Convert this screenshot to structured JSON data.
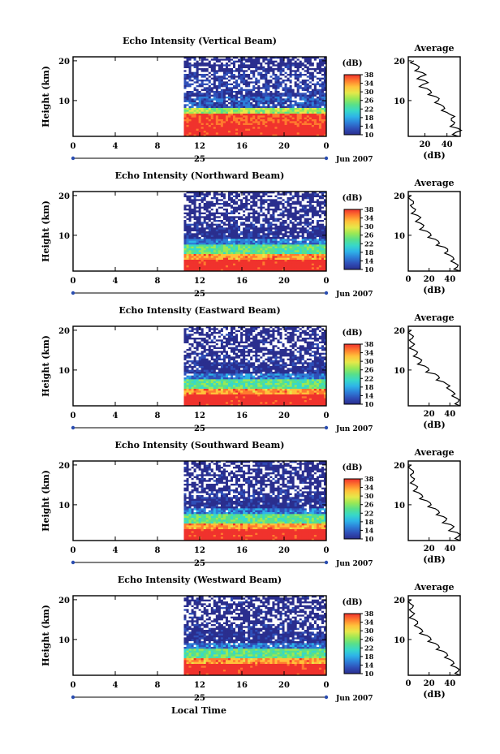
{
  "figure": {
    "footer_xlabel": "Local Time",
    "colorbar": {
      "unit": "(dB)",
      "ticks": [
        "10",
        "14",
        "18",
        "22",
        "26",
        "30",
        "34",
        "38"
      ],
      "range": [
        10,
        38
      ]
    },
    "colormap": [
      "#2a2e8e",
      "#2f4fb8",
      "#2d7fd8",
      "#2eb4e8",
      "#38d8c8",
      "#59e08a",
      "#9be855",
      "#e6e84a",
      "#ffc13a",
      "#ff7a2e",
      "#f0322d"
    ],
    "date_label": "Jun 2007",
    "day_label": "25",
    "profile_title": "Average",
    "profile_xlabel": "(dB)"
  },
  "chart_data": [
    {
      "type": "heatmap",
      "title": "Echo Intensity (Vertical Beam)",
      "ylabel": "Height (km)",
      "x_ticks": [
        "0",
        "4",
        "8",
        "12",
        "16",
        "20",
        "0"
      ],
      "y_ticks": [
        "10",
        "20"
      ],
      "xlim": [
        0,
        24
      ],
      "ylim": [
        1,
        21
      ],
      "data_start_hour": 10.5,
      "layers": [
        {
          "from_km": 1,
          "to_km": 4,
          "db": 38
        },
        {
          "from_km": 4,
          "to_km": 6.5,
          "db": 36
        },
        {
          "from_km": 6.5,
          "to_km": 8,
          "db": 27
        },
        {
          "from_km": 8,
          "to_km": 11,
          "db": 14
        },
        {
          "from_km": 11,
          "to_km": 17,
          "db": 12
        },
        {
          "from_km": 17,
          "to_km": 21,
          "db": 10
        }
      ],
      "profile": {
        "xlabel": "(dB)",
        "x_ticks": [
          "20",
          "40"
        ],
        "xlim": [
          5,
          52
        ],
        "ylim": [
          1,
          21
        ],
        "y_ticks": [
          "10",
          "20"
        ],
        "points": [
          [
            50,
            1
          ],
          [
            48,
            2
          ],
          [
            50,
            3
          ],
          [
            46,
            4
          ],
          [
            44,
            5
          ],
          [
            47,
            6
          ],
          [
            40,
            7
          ],
          [
            38,
            8
          ],
          [
            34,
            9
          ],
          [
            32,
            10
          ],
          [
            30,
            11
          ],
          [
            26,
            12
          ],
          [
            22,
            13
          ],
          [
            18,
            14
          ],
          [
            20,
            15
          ],
          [
            16,
            16
          ],
          [
            18,
            17
          ],
          [
            14,
            18
          ],
          [
            12,
            19
          ],
          [
            10,
            20
          ]
        ]
      }
    },
    {
      "type": "heatmap",
      "title": "Echo Intensity (Northward Beam)",
      "ylabel": "Height (km)",
      "x_ticks": [
        "0",
        "4",
        "8",
        "12",
        "16",
        "20",
        "0"
      ],
      "y_ticks": [
        "10",
        "20"
      ],
      "xlim": [
        0,
        24
      ],
      "ylim": [
        1,
        21
      ],
      "data_start_hour": 10.5,
      "layers": [
        {
          "from_km": 1,
          "to_km": 4,
          "db": 38
        },
        {
          "from_km": 4,
          "to_km": 5.5,
          "db": 33
        },
        {
          "from_km": 5.5,
          "to_km": 7.5,
          "db": 24
        },
        {
          "from_km": 7.5,
          "to_km": 9,
          "db": 16
        },
        {
          "from_km": 9,
          "to_km": 14,
          "db": 11
        },
        {
          "from_km": 14,
          "to_km": 21,
          "db": 10
        }
      ],
      "profile": {
        "xlabel": "(dB)",
        "x_ticks": [
          "0",
          "20",
          "40"
        ],
        "xlim": [
          0,
          50
        ],
        "ylim": [
          1,
          21
        ],
        "y_ticks": [
          "10",
          "20"
        ],
        "points": [
          [
            50,
            1
          ],
          [
            47,
            2
          ],
          [
            45,
            3
          ],
          [
            44,
            4
          ],
          [
            40,
            5
          ],
          [
            38,
            6
          ],
          [
            35,
            7
          ],
          [
            30,
            8
          ],
          [
            26,
            9
          ],
          [
            22,
            10
          ],
          [
            18,
            11
          ],
          [
            14,
            12
          ],
          [
            12,
            13
          ],
          [
            10,
            14
          ],
          [
            9,
            15
          ],
          [
            6,
            16
          ],
          [
            4,
            17
          ],
          [
            5,
            18
          ],
          [
            2,
            19
          ],
          [
            3,
            20
          ]
        ]
      }
    },
    {
      "type": "heatmap",
      "title": "Echo Intensity (Eastward Beam)",
      "ylabel": "Height (km)",
      "x_ticks": [
        "0",
        "4",
        "8",
        "12",
        "16",
        "20",
        "0"
      ],
      "y_ticks": [
        "10",
        "20"
      ],
      "xlim": [
        0,
        24
      ],
      "ylim": [
        1,
        21
      ],
      "data_start_hour": 10.5,
      "layers": [
        {
          "from_km": 1,
          "to_km": 4,
          "db": 38
        },
        {
          "from_km": 4,
          "to_km": 5.5,
          "db": 33
        },
        {
          "from_km": 5.5,
          "to_km": 7.5,
          "db": 24
        },
        {
          "from_km": 7.5,
          "to_km": 9,
          "db": 16
        },
        {
          "from_km": 9,
          "to_km": 14,
          "db": 11
        },
        {
          "from_km": 14,
          "to_km": 21,
          "db": 10
        }
      ],
      "profile": {
        "xlabel": "(dB)",
        "x_ticks": [
          "20",
          "40"
        ],
        "xlim": [
          0,
          50
        ],
        "ylim": [
          1,
          21
        ],
        "y_ticks": [
          "10",
          "20"
        ],
        "points": [
          [
            50,
            1
          ],
          [
            48,
            2
          ],
          [
            46,
            3
          ],
          [
            45,
            4
          ],
          [
            40,
            5
          ],
          [
            40,
            6
          ],
          [
            34,
            7
          ],
          [
            30,
            8
          ],
          [
            26,
            9
          ],
          [
            20,
            10
          ],
          [
            16,
            11
          ],
          [
            12,
            12
          ],
          [
            10,
            13
          ],
          [
            8,
            14
          ],
          [
            6,
            15
          ],
          [
            4,
            16
          ],
          [
            3,
            17
          ],
          [
            4,
            18
          ],
          [
            2,
            19
          ],
          [
            3,
            20
          ]
        ]
      }
    },
    {
      "type": "heatmap",
      "title": "Echo Intensity (Southward Beam)",
      "ylabel": "Height (km)",
      "x_ticks": [
        "0",
        "4",
        "8",
        "12",
        "16",
        "20",
        "0"
      ],
      "y_ticks": [
        "10",
        "20"
      ],
      "xlim": [
        0,
        24
      ],
      "ylim": [
        1,
        21
      ],
      "data_start_hour": 10.5,
      "layers": [
        {
          "from_km": 1,
          "to_km": 4,
          "db": 38
        },
        {
          "from_km": 4,
          "to_km": 5.5,
          "db": 33
        },
        {
          "from_km": 5.5,
          "to_km": 7.5,
          "db": 24
        },
        {
          "from_km": 7.5,
          "to_km": 9,
          "db": 16
        },
        {
          "from_km": 9,
          "to_km": 14,
          "db": 11
        },
        {
          "from_km": 14,
          "to_km": 21,
          "db": 10
        }
      ],
      "profile": {
        "xlabel": "(dB)",
        "x_ticks": [
          "20",
          "40"
        ],
        "xlim": [
          0,
          50
        ],
        "ylim": [
          1,
          21
        ],
        "y_ticks": [
          "10",
          "20"
        ],
        "points": [
          [
            50,
            1
          ],
          [
            48,
            2
          ],
          [
            47,
            3
          ],
          [
            42,
            4
          ],
          [
            41,
            5
          ],
          [
            36,
            6
          ],
          [
            34,
            7
          ],
          [
            30,
            8
          ],
          [
            26,
            9
          ],
          [
            22,
            10
          ],
          [
            18,
            11
          ],
          [
            14,
            12
          ],
          [
            10,
            13
          ],
          [
            8,
            14
          ],
          [
            6,
            15
          ],
          [
            5,
            16
          ],
          [
            3,
            17
          ],
          [
            5,
            18
          ],
          [
            2,
            19
          ],
          [
            3,
            20
          ]
        ]
      }
    },
    {
      "type": "heatmap",
      "title": "Echo Intensity (Westward Beam)",
      "ylabel": "Height (km)",
      "x_ticks": [
        "0",
        "4",
        "8",
        "12",
        "16",
        "20",
        "0"
      ],
      "y_ticks": [
        "10",
        "20"
      ],
      "xlim": [
        0,
        24
      ],
      "ylim": [
        1,
        21
      ],
      "data_start_hour": 10.5,
      "layers": [
        {
          "from_km": 1,
          "to_km": 4,
          "db": 38
        },
        {
          "from_km": 4,
          "to_km": 5.5,
          "db": 33
        },
        {
          "from_km": 5.5,
          "to_km": 7.5,
          "db": 24
        },
        {
          "from_km": 7.5,
          "to_km": 9,
          "db": 16
        },
        {
          "from_km": 9,
          "to_km": 14,
          "db": 11
        },
        {
          "from_km": 14,
          "to_km": 21,
          "db": 10
        }
      ],
      "profile": {
        "xlabel": "(dB)",
        "x_ticks": [
          "0",
          "20",
          "40"
        ],
        "xlim": [
          0,
          50
        ],
        "ylim": [
          1,
          21
        ],
        "y_ticks": [
          "10",
          "20"
        ],
        "points": [
          [
            50,
            1
          ],
          [
            48,
            2
          ],
          [
            46,
            3
          ],
          [
            44,
            4
          ],
          [
            40,
            5
          ],
          [
            38,
            6
          ],
          [
            34,
            7
          ],
          [
            30,
            8
          ],
          [
            26,
            9
          ],
          [
            22,
            10
          ],
          [
            18,
            11
          ],
          [
            14,
            12
          ],
          [
            10,
            13
          ],
          [
            9,
            14
          ],
          [
            6,
            15
          ],
          [
            4,
            16
          ],
          [
            3,
            17
          ],
          [
            4,
            18
          ],
          [
            2,
            19
          ],
          [
            3,
            20
          ]
        ]
      }
    }
  ]
}
